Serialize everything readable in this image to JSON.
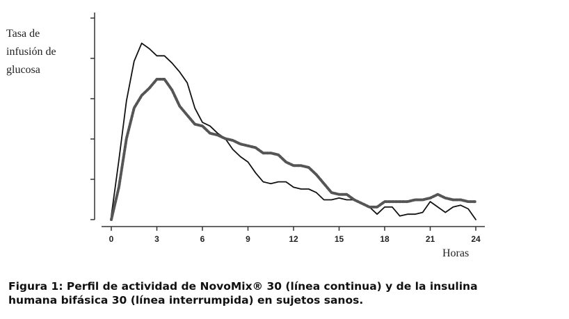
{
  "chart_data": {
    "type": "line",
    "ylabel_lines": [
      "Tasa de",
      "infusión de",
      "glucosa"
    ],
    "xlabel": "Horas",
    "xlim": [
      0,
      24
    ],
    "ylim": [
      0,
      1
    ],
    "xticks": [
      0,
      3,
      6,
      9,
      12,
      15,
      18,
      21,
      24
    ],
    "y_tick_count": 6,
    "grid": false,
    "series": [
      {
        "style": "solid",
        "color": "#111111",
        "x": [
          0,
          0.5,
          1,
          1.5,
          2,
          2.5,
          3,
          3.5,
          4,
          4.5,
          5,
          5.5,
          6,
          6.5,
          7,
          7.5,
          8,
          8.5,
          9,
          9.5,
          10,
          10.5,
          11,
          11.5,
          12,
          12.5,
          13,
          13.5,
          14,
          14.5,
          15,
          15.5,
          16,
          16.5,
          17,
          17.5,
          18,
          18.5,
          19,
          19.5,
          20,
          20.5,
          21,
          21.5,
          22,
          22.5,
          23,
          23.5,
          24
        ],
        "y": [
          0.02,
          0.33,
          0.66,
          0.88,
          0.98,
          0.95,
          0.91,
          0.91,
          0.87,
          0.82,
          0.76,
          0.62,
          0.54,
          0.52,
          0.48,
          0.45,
          0.39,
          0.35,
          0.32,
          0.26,
          0.21,
          0.2,
          0.21,
          0.21,
          0.18,
          0.17,
          0.17,
          0.15,
          0.11,
          0.11,
          0.12,
          0.11,
          0.11,
          0.09,
          0.07,
          0.03,
          0.07,
          0.07,
          0.02,
          0.03,
          0.03,
          0.04,
          0.1,
          0.07,
          0.04,
          0.07,
          0.08,
          0.06,
          0.0
        ]
      },
      {
        "style": "dashed",
        "color": "#555555",
        "x": [
          0,
          0.5,
          1,
          1.5,
          2,
          2.5,
          3,
          3.5,
          4,
          4.5,
          5,
          5.5,
          6,
          6.5,
          7,
          7.5,
          8,
          8.5,
          9,
          9.5,
          10,
          10.5,
          11,
          11.5,
          12,
          12.5,
          13,
          13.5,
          14,
          14.5,
          15,
          15.5,
          16,
          16.5,
          17,
          17.5,
          18,
          18.5,
          19,
          19.5,
          20,
          20.5,
          21,
          21.5,
          22,
          22.5,
          23,
          23.5,
          24
        ],
        "y": [
          0.0,
          0.18,
          0.45,
          0.62,
          0.69,
          0.73,
          0.78,
          0.78,
          0.72,
          0.63,
          0.58,
          0.53,
          0.52,
          0.48,
          0.47,
          0.45,
          0.44,
          0.42,
          0.41,
          0.4,
          0.37,
          0.37,
          0.36,
          0.32,
          0.3,
          0.3,
          0.29,
          0.25,
          0.2,
          0.15,
          0.14,
          0.14,
          0.11,
          0.09,
          0.07,
          0.07,
          0.1,
          0.1,
          0.1,
          0.1,
          0.11,
          0.11,
          0.12,
          0.14,
          0.12,
          0.11,
          0.11,
          0.1,
          0.1
        ]
      }
    ]
  },
  "caption": {
    "line1": "Figura 1: Perfil de actividad de NovoMix® 30 (línea continua) y de la insulina",
    "line2": "humana bifásica 30 (línea interrumpida) en sujetos sanos."
  }
}
